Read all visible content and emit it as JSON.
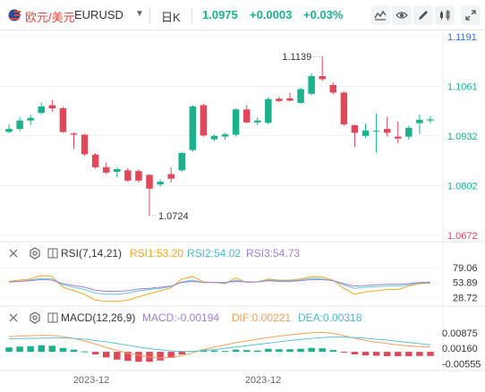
{
  "toolbar": {
    "pair_name": "欧元/美元",
    "symbol": "EURUSD",
    "period": "日K",
    "price": "1.0975",
    "change": "+0.0003",
    "change_pct": "+0.03%",
    "icons": [
      "flag-icon",
      "chevron-down-icon",
      "line-chart-icon",
      "eye-off-icon",
      "pencil-icon",
      "candlestick-settings-icon",
      "expand-icon",
      "settings-icon"
    ]
  },
  "rsi_legend": {
    "name": "RSI(7,14,21)",
    "rsi1": "RSI1:53.20",
    "rsi2": "RSI2:54.02",
    "rsi3": "RSI3:54.73"
  },
  "macd_legend": {
    "name": "MACD(12,26,9)",
    "macd": "MACD:-0.00194",
    "dif": "DIF:0.00221",
    "dea": "DEA:0.00318"
  },
  "colors": {
    "up": "#1bb18a",
    "down": "#e0475a",
    "rsi1": "#f5a623",
    "rsi2": "#67c7d4",
    "rsi3": "#a17fd8",
    "dif": "#f5a05a",
    "dea": "#5bc0d8",
    "accent": "#2b6ee0"
  },
  "chart_data": [
    {
      "type": "candlestick",
      "y_ticks": [
        "1.1191",
        "1.1061",
        "1.0932",
        "1.0802",
        "1.0672"
      ],
      "ylim": [
        1.0672,
        1.1191
      ],
      "annotations": {
        "high": "1.1139",
        "low": "1.0724"
      },
      "x_ticks": [
        "2023-12",
        "2023-12"
      ],
      "candles": [
        {
          "o": 1.0942,
          "h": 1.0962,
          "l": 1.094,
          "c": 1.095
        },
        {
          "o": 1.095,
          "h": 1.098,
          "l": 1.0944,
          "c": 1.0972
        },
        {
          "o": 1.0972,
          "h": 1.0987,
          "l": 1.096,
          "c": 1.0979
        },
        {
          "o": 1.0992,
          "h": 1.1018,
          "l": 1.0988,
          "c": 1.1009
        },
        {
          "o": 1.1012,
          "h": 1.1026,
          "l": 1.0995,
          "c": 1.1004
        },
        {
          "o": 1.1004,
          "h": 1.1008,
          "l": 1.094,
          "c": 1.0942
        },
        {
          "o": 1.0938,
          "h": 1.0941,
          "l": 1.0898,
          "c": 1.0935
        },
        {
          "o": 1.0935,
          "h": 1.0938,
          "l": 1.088,
          "c": 1.0884
        },
        {
          "o": 1.0883,
          "h": 1.0887,
          "l": 1.0846,
          "c": 1.085
        },
        {
          "o": 1.085,
          "h": 1.0862,
          "l": 1.0832,
          "c": 1.0836
        },
        {
          "o": 1.0838,
          "h": 1.085,
          "l": 1.0824,
          "c": 1.0845
        },
        {
          "o": 1.0842,
          "h": 1.0848,
          "l": 1.0812,
          "c": 1.0815
        },
        {
          "o": 1.084,
          "h": 1.0845,
          "l": 1.081,
          "c": 1.0815
        },
        {
          "o": 1.083,
          "h": 1.0832,
          "l": 1.0724,
          "c": 1.0794
        },
        {
          "o": 1.0805,
          "h": 1.0818,
          "l": 1.0799,
          "c": 1.0812
        },
        {
          "o": 1.0832,
          "h": 1.085,
          "l": 1.081,
          "c": 1.082
        },
        {
          "o": 1.0842,
          "h": 1.089,
          "l": 1.0838,
          "c": 1.0887
        },
        {
          "o": 1.0895,
          "h": 1.1012,
          "l": 1.089,
          "c": 1.1009
        },
        {
          "o": 1.1012,
          "h": 1.1016,
          "l": 1.093,
          "c": 1.0933
        },
        {
          "o": 1.0923,
          "h": 1.0936,
          "l": 1.0918,
          "c": 1.0932
        },
        {
          "o": 1.093,
          "h": 1.094,
          "l": 1.0922,
          "c": 1.0936
        },
        {
          "o": 1.0935,
          "h": 1.1004,
          "l": 1.093,
          "c": 1.1001
        },
        {
          "o": 1.1001,
          "h": 1.1012,
          "l": 1.0965,
          "c": 1.0967
        },
        {
          "o": 1.0967,
          "h": 1.098,
          "l": 1.096,
          "c": 1.0972
        },
        {
          "o": 1.0966,
          "h": 1.1033,
          "l": 1.0962,
          "c": 1.1028
        },
        {
          "o": 1.1029,
          "h": 1.1034,
          "l": 1.102,
          "c": 1.1023
        },
        {
          "o": 1.103,
          "h": 1.1045,
          "l": 1.1022,
          "c": 1.1024
        },
        {
          "o": 1.1018,
          "h": 1.1058,
          "l": 1.1016,
          "c": 1.1054
        },
        {
          "o": 1.1042,
          "h": 1.1095,
          "l": 1.1038,
          "c": 1.1088
        },
        {
          "o": 1.1088,
          "h": 1.1139,
          "l": 1.1075,
          "c": 1.108
        },
        {
          "o": 1.1065,
          "h": 1.1072,
          "l": 1.104,
          "c": 1.1045
        },
        {
          "o": 1.1045,
          "h": 1.1048,
          "l": 1.0958,
          "c": 1.0962
        },
        {
          "o": 1.096,
          "h": 1.0961,
          "l": 1.0902,
          "c": 1.094
        },
        {
          "o": 1.0932,
          "h": 1.0964,
          "l": 1.0926,
          "c": 1.0946
        },
        {
          "o": 1.0945,
          "h": 1.099,
          "l": 1.0888,
          "c": 1.0945
        },
        {
          "o": 1.095,
          "h": 1.0982,
          "l": 1.093,
          "c": 1.094
        },
        {
          "o": 1.093,
          "h": 1.097,
          "l": 1.0912,
          "c": 1.0925
        },
        {
          "o": 1.093,
          "h": 1.0958,
          "l": 1.0922,
          "c": 1.0953
        },
        {
          "o": 1.0965,
          "h": 1.0988,
          "l": 1.0936,
          "c": 1.0974
        },
        {
          "o": 1.0972,
          "h": 1.0984,
          "l": 1.0965,
          "c": 1.0975
        }
      ]
    },
    {
      "type": "line",
      "y_ticks": [
        "79.06",
        "53.89",
        "28.72"
      ],
      "ylim": [
        20,
        90
      ],
      "series": [
        {
          "name": "RSI1",
          "values": [
            56,
            58,
            60,
            66,
            64,
            46,
            40,
            34,
            24,
            22,
            22,
            24,
            30,
            35,
            40,
            45,
            60,
            64,
            55,
            54,
            52,
            62,
            54,
            55,
            60,
            58,
            58,
            60,
            64,
            63,
            58,
            44,
            34,
            38,
            40,
            42,
            42,
            48,
            52,
            53
          ]
        },
        {
          "name": "RSI2",
          "values": [
            55,
            56,
            58,
            61,
            60,
            50,
            46,
            42,
            36,
            34,
            34,
            36,
            40,
            42,
            44,
            47,
            55,
            58,
            54,
            54,
            53,
            58,
            55,
            55,
            58,
            57,
            57,
            58,
            61,
            60,
            57,
            50,
            44,
            46,
            47,
            48,
            48,
            50,
            53,
            54
          ]
        },
        {
          "name": "RSI3",
          "values": [
            55,
            56,
            57,
            59,
            58,
            52,
            49,
            46,
            41,
            39,
            39,
            40,
            43,
            44,
            46,
            48,
            54,
            56,
            54,
            54,
            54,
            56,
            55,
            55,
            57,
            56,
            56,
            57,
            59,
            59,
            57,
            52,
            48,
            49,
            50,
            51,
            51,
            52,
            54,
            54.7
          ]
        }
      ]
    },
    {
      "type": "bar",
      "y_ticks": [
        "0.00875",
        "0.00160",
        "-0.00555"
      ],
      "ylim": [
        -0.0078,
        0.012
      ],
      "series": [
        {
          "name": "MACD",
          "values": [
            0.002,
            0.0024,
            0.0026,
            0.003,
            0.0028,
            0.0018,
            0.001,
            0.0002,
            -0.0012,
            -0.0026,
            -0.0036,
            -0.0042,
            -0.0046,
            -0.0046,
            -0.004,
            -0.0028,
            -0.0012,
            0.0004,
            0.001,
            0.0006,
            0.0004,
            0.001,
            0.0008,
            0.0006,
            0.0014,
            0.0012,
            0.0012,
            0.0014,
            0.0018,
            0.0016,
            0.0008,
            -0.0004,
            -0.0012,
            -0.0016,
            -0.0018,
            -0.002,
            -0.002,
            -0.002,
            -0.0019,
            -0.0019
          ]
        },
        {
          "name": "DIF",
          "values": [
            0.007,
            0.0072,
            0.0074,
            0.0076,
            0.0075,
            0.007,
            0.0062,
            0.005,
            0.0036,
            0.002,
            0.0006,
            -0.0006,
            -0.0016,
            -0.0024,
            -0.0028,
            -0.0026,
            -0.0018,
            -0.0005,
            0.001,
            0.0022,
            0.0032,
            0.0042,
            0.005,
            0.0058,
            0.0066,
            0.0072,
            0.0078,
            0.0083,
            0.0088,
            0.009,
            0.0085,
            0.0074,
            0.0062,
            0.0052,
            0.0044,
            0.0038,
            0.0032,
            0.0027,
            0.0024,
            0.0022
          ]
        },
        {
          "name": "DEA",
          "values": [
            0.006,
            0.0061,
            0.0062,
            0.0063,
            0.0064,
            0.0064,
            0.0062,
            0.0058,
            0.0052,
            0.0046,
            0.0038,
            0.003,
            0.0022,
            0.0015,
            0.0009,
            0.0004,
            0.0002,
            0.0002,
            0.0006,
            0.001,
            0.0016,
            0.0022,
            0.0028,
            0.0034,
            0.004,
            0.0046,
            0.0052,
            0.0057,
            0.0062,
            0.0066,
            0.0068,
            0.0068,
            0.0066,
            0.0062,
            0.0058,
            0.0054,
            0.0048,
            0.0043,
            0.0038,
            0.0032
          ]
        }
      ]
    }
  ]
}
